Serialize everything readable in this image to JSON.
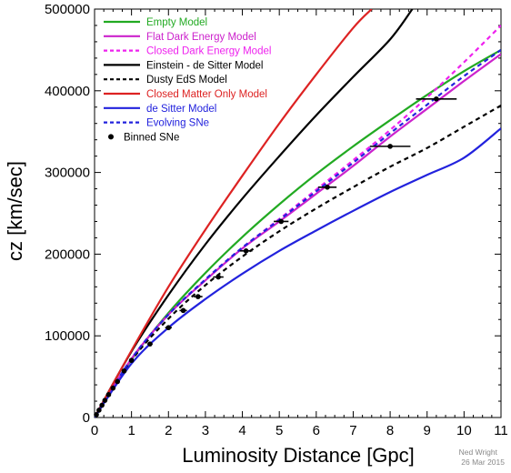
{
  "chart_data": {
    "type": "line",
    "xlabel": "Luminosity Distance [Gpc]",
    "ylabel": "cz [km/sec]",
    "xlim": [
      0,
      11
    ],
    "ylim": [
      0,
      500000
    ],
    "x_ticks": [
      "0",
      "1",
      "2",
      "3",
      "4",
      "5",
      "6",
      "7",
      "8",
      "9",
      "10",
      "11"
    ],
    "y_ticks": [
      "0",
      "100000",
      "200000",
      "300000",
      "400000",
      "500000"
    ],
    "legend_position": "top-left",
    "grid": false,
    "series": [
      {
        "name": "Empty Model",
        "color": "#22aa22",
        "dash": "solid",
        "x": [
          0,
          1,
          2,
          3,
          4,
          5,
          6,
          7,
          8,
          9,
          10,
          11
        ],
        "y": [
          0,
          71000,
          128000,
          177000,
          221000,
          261000,
          298000,
          332000,
          364000,
          395000,
          424000,
          450000
        ]
      },
      {
        "name": "Flat Dark Energy Model",
        "color": "#cc22cc",
        "dash": "solid",
        "x": [
          0,
          1,
          2,
          3,
          4,
          5,
          6,
          7,
          8,
          9,
          10,
          11
        ],
        "y": [
          0,
          72000,
          126000,
          168000,
          207000,
          240000,
          274000,
          308000,
          344000,
          378000,
          412000,
          445000
        ]
      },
      {
        "name": "Closed Dark Energy Model",
        "color": "#ee22ee",
        "dash": "dashed",
        "x": [
          0,
          1,
          2,
          3,
          4,
          5,
          6,
          7,
          8,
          9,
          10,
          11
        ],
        "y": [
          0,
          72000,
          126000,
          169000,
          208000,
          243000,
          279000,
          315000,
          352000,
          392000,
          435000,
          480000
        ]
      },
      {
        "name": "Einstein - de Sitter Model",
        "color": "#000000",
        "dash": "solid",
        "x": [
          0,
          1,
          2,
          3,
          4,
          5,
          6,
          7,
          8,
          8.6
        ],
        "y": [
          0,
          81000,
          150000,
          212000,
          268000,
          320000,
          370000,
          417000,
          463000,
          500000
        ]
      },
      {
        "name": "Dusty EdS Model",
        "color": "#000000",
        "dash": "dashed",
        "x": [
          0,
          1,
          2,
          3,
          4,
          5,
          6,
          7,
          8,
          9,
          10,
          11
        ],
        "y": [
          0,
          70000,
          121000,
          162000,
          197000,
          228000,
          256000,
          282000,
          307000,
          330000,
          356000,
          382000
        ]
      },
      {
        "name": "Closed Matter Only Model",
        "color": "#dd2222",
        "dash": "solid",
        "x": [
          0,
          1,
          2,
          3,
          4,
          5,
          6,
          7,
          7.5
        ],
        "y": [
          0,
          82000,
          160000,
          230000,
          296000,
          360000,
          420000,
          477000,
          500000
        ]
      },
      {
        "name": "de Sitter Model",
        "color": "#2222dd",
        "dash": "solid",
        "x": [
          0,
          1,
          2,
          3,
          4,
          5,
          6,
          7,
          8,
          9,
          10,
          11
        ],
        "y": [
          0,
          66000,
          110000,
          145000,
          176000,
          204000,
          229000,
          253000,
          276000,
          297000,
          318000,
          354000
        ]
      },
      {
        "name": "Evolving SNe",
        "color": "#2222dd",
        "dash": "dashed",
        "x": [
          0,
          1,
          2,
          3,
          4,
          5,
          6,
          7,
          8,
          9,
          10,
          11
        ],
        "y": [
          0,
          72000,
          126000,
          169000,
          208000,
          242000,
          277000,
          312000,
          348000,
          383000,
          418000,
          450000
        ]
      }
    ],
    "binned_sne": {
      "name": "Binned SNe",
      "points": [
        {
          "x": 0.05,
          "y": 3500
        },
        {
          "x": 0.12,
          "y": 9000
        },
        {
          "x": 0.2,
          "y": 15000
        },
        {
          "x": 0.28,
          "y": 21000
        },
        {
          "x": 0.38,
          "y": 28000
        },
        {
          "x": 0.5,
          "y": 36000
        },
        {
          "x": 0.62,
          "y": 44000
        },
        {
          "x": 0.8,
          "y": 57000
        },
        {
          "x": 1.0,
          "y": 70000
        },
        {
          "x": 1.5,
          "y": 90000,
          "xerr": 0.07
        },
        {
          "x": 2.0,
          "y": 110000,
          "xerr": 0.09
        },
        {
          "x": 2.4,
          "y": 131000,
          "xerr": 0.1
        },
        {
          "x": 2.8,
          "y": 148000,
          "xerr": 0.12
        },
        {
          "x": 3.35,
          "y": 172000,
          "xerr": 0.14
        },
        {
          "x": 4.1,
          "y": 204000,
          "xerr": 0.17
        },
        {
          "x": 5.05,
          "y": 240000,
          "xerr": 0.2
        },
        {
          "x": 6.3,
          "y": 282000,
          "xerr": 0.25
        },
        {
          "x": 8.0,
          "y": 332000,
          "xerr": 0.55
        },
        {
          "x": 9.25,
          "y": 390000,
          "xerr": 0.55
        }
      ]
    },
    "credit": [
      "Ned Wright",
      "26 Mar 2015"
    ]
  }
}
